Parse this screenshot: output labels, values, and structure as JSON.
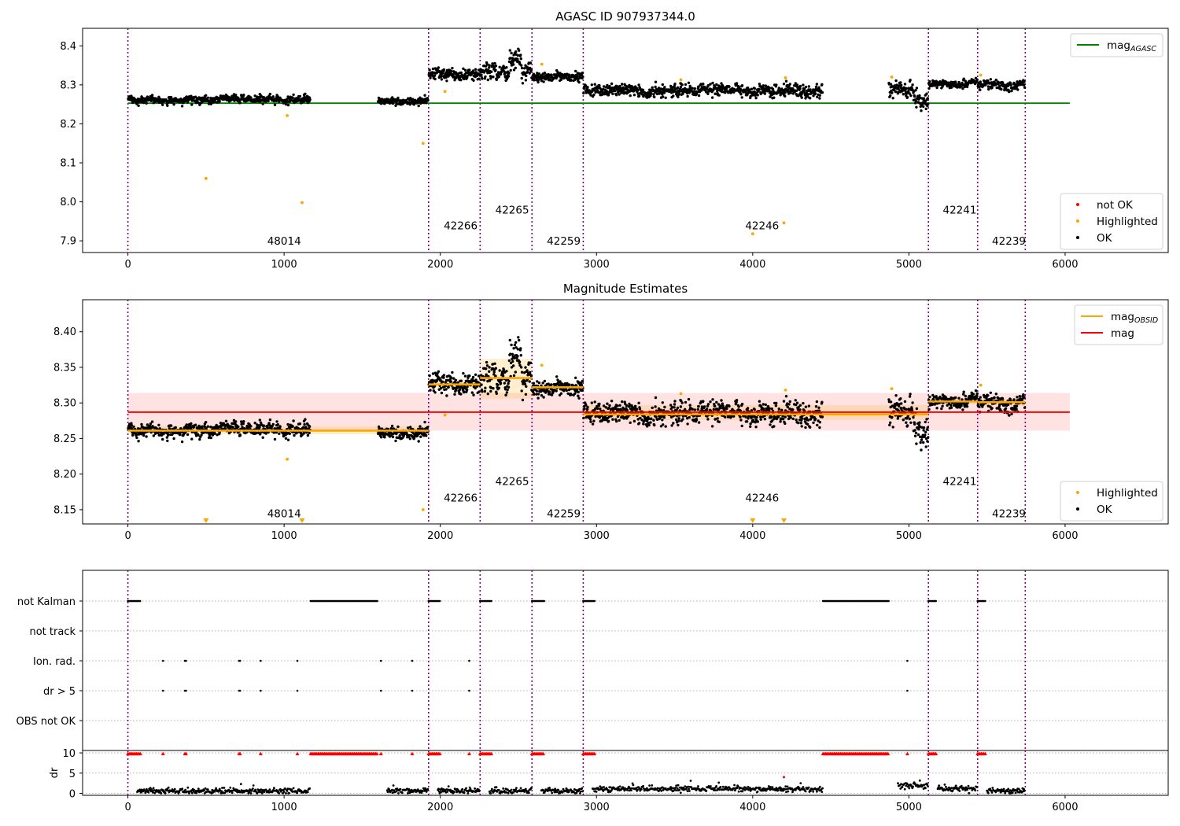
{
  "chart_data": [
    {
      "id": "top",
      "type": "scatter",
      "title": "AGASC ID 907937344.0",
      "xlim": [
        -290,
        6660
      ],
      "ylim": [
        7.87,
        8.445
      ],
      "xticks": [
        0,
        1000,
        2000,
        3000,
        4000,
        5000,
        6000
      ],
      "yticks": [
        7.9,
        8.0,
        8.1,
        8.2,
        8.3,
        8.4
      ],
      "obs_boundaries": [
        0,
        1925,
        2255,
        2587,
        2915,
        5125,
        5440,
        5745
      ],
      "obsid_labels": [
        {
          "text": "48014",
          "x": 960,
          "y": 7.9
        },
        {
          "text": "42266",
          "x": 2090,
          "y": 7.94
        },
        {
          "text": "42265",
          "x": 2420,
          "y": 7.98
        },
        {
          "text": "42259",
          "x": 2750,
          "y": 7.9
        },
        {
          "text": "42246",
          "x": 4020,
          "y": 7.94
        },
        {
          "text": "42241",
          "x": 5285,
          "y": 7.98
        },
        {
          "text": "42239",
          "x": 5600,
          "y": 7.9
        }
      ],
      "mag_agasc": {
        "value": 8.253,
        "x_range": [
          0,
          6030
        ],
        "color": "#008000"
      },
      "segments": [
        {
          "x0": 0,
          "x1": 1170,
          "mean": 8.262,
          "sd": 0.006
        },
        {
          "x0": 1600,
          "x1": 1925,
          "mean": 8.258,
          "sd": 0.006
        },
        {
          "x0": 1925,
          "x1": 2255,
          "mean": 8.325,
          "sd": 0.01
        },
        {
          "x0": 2255,
          "x1": 2587,
          "mean": 8.333,
          "sd": 0.016
        },
        {
          "x0": 2587,
          "x1": 2915,
          "mean": 8.323,
          "sd": 0.007
        },
        {
          "x0": 2915,
          "x1": 4450,
          "mean": 8.285,
          "sd": 0.009
        },
        {
          "x0": 4870,
          "x1": 5125,
          "mean": 8.283,
          "sd": 0.013
        },
        {
          "x0": 5125,
          "x1": 5440,
          "mean": 8.303,
          "sd": 0.006
        },
        {
          "x0": 5440,
          "x1": 5745,
          "mean": 8.302,
          "sd": 0.008
        }
      ],
      "highlighted_outliers": [
        {
          "x": 500,
          "y": 8.06
        },
        {
          "x": 1115,
          "y": 7.998
        },
        {
          "x": 1890,
          "y": 8.15
        },
        {
          "x": 2030,
          "y": 8.283
        },
        {
          "x": 4000,
          "y": 7.918
        },
        {
          "x": 4200,
          "y": 7.946
        },
        {
          "x": 1020,
          "y": 8.221
        },
        {
          "x": 2650,
          "y": 8.353
        },
        {
          "x": 3540,
          "y": 8.313
        },
        {
          "x": 4890,
          "y": 8.32
        },
        {
          "x": 4210,
          "y": 8.318
        },
        {
          "x": 5460,
          "y": 8.325
        }
      ],
      "legends": [
        {
          "position": "top-right",
          "entries": [
            {
              "label": "mag",
              "sub": "AGASC",
              "kind": "line",
              "color": "#008000"
            }
          ]
        },
        {
          "position": "bottom-right",
          "entries": [
            {
              "label": "not OK",
              "kind": "dot",
              "color": "#ff0000"
            },
            {
              "label": "Highlighted",
              "kind": "dot",
              "color": "#ffa500"
            },
            {
              "label": "OK",
              "kind": "dot",
              "color": "#000000"
            }
          ]
        }
      ]
    },
    {
      "id": "mid",
      "type": "scatter",
      "title": "Magnitude Estimates",
      "xlim": [
        -290,
        6660
      ],
      "ylim": [
        8.13,
        8.445
      ],
      "xticks": [
        0,
        1000,
        2000,
        3000,
        4000,
        5000,
        6000
      ],
      "yticks": [
        8.15,
        8.2,
        8.25,
        8.3,
        8.35,
        8.4
      ],
      "mag": {
        "value": 8.287,
        "band": [
          8.261,
          8.314
        ],
        "x_range": [
          0,
          6030
        ],
        "color": "#ff0000"
      },
      "mag_obsid": [
        {
          "x0": 0,
          "x1": 1925,
          "value": 8.261,
          "band": [
            8.256,
            8.267
          ]
        },
        {
          "x0": 1925,
          "x1": 2255,
          "value": 8.326,
          "band": [
            8.318,
            8.334
          ]
        },
        {
          "x0": 2255,
          "x1": 2587,
          "value": 8.335,
          "band": [
            8.306,
            8.362
          ]
        },
        {
          "x0": 2587,
          "x1": 2915,
          "value": 8.322,
          "band": [
            8.316,
            8.328
          ]
        },
        {
          "x0": 2915,
          "x1": 5125,
          "value": 8.284,
          "band": [
            8.276,
            8.297
          ]
        },
        {
          "x0": 5125,
          "x1": 5440,
          "value": 8.302,
          "band": [
            8.298,
            8.306
          ]
        },
        {
          "x0": 5440,
          "x1": 5745,
          "value": 8.301,
          "band": [
            8.296,
            8.306
          ]
        }
      ],
      "clipped_markers": [
        {
          "x": 500
        },
        {
          "x": 1115
        },
        {
          "x": 4000
        },
        {
          "x": 4200
        }
      ],
      "legends": [
        {
          "position": "top-right",
          "entries": [
            {
              "label": "mag",
              "sub": "OBSID",
              "kind": "line",
              "color": "#ffa500"
            },
            {
              "label": "mag",
              "kind": "line",
              "color": "#ff0000"
            }
          ]
        },
        {
          "position": "bottom-right",
          "entries": [
            {
              "label": "Highlighted",
              "kind": "dot",
              "color": "#ffa500"
            },
            {
              "label": "OK",
              "kind": "dot",
              "color": "#000000"
            }
          ]
        }
      ]
    },
    {
      "id": "flags",
      "type": "scatter",
      "categories": [
        "not Kalman",
        "not track",
        "Ion. rad.",
        "dr > 5",
        "OBS not OK"
      ],
      "xlim": [
        -290,
        6660
      ],
      "not_kalman_ranges": [
        [
          0,
          80
        ],
        [
          1170,
          1600
        ],
        [
          1925,
          2000
        ],
        [
          2255,
          2330
        ],
        [
          2587,
          2665
        ],
        [
          2915,
          2990
        ],
        [
          4450,
          4870
        ],
        [
          5125,
          5175
        ],
        [
          5440,
          5490
        ]
      ],
      "ion_rad_x": [
        225,
        365,
        372,
        712,
        718,
        850,
        1085,
        1620,
        1820,
        2185,
        4990
      ],
      "dr_gt5_x": [
        225,
        365,
        372,
        712,
        718,
        850,
        1085,
        1620,
        1820,
        2185,
        4990
      ]
    },
    {
      "id": "dr",
      "type": "scatter",
      "ylabel": "dr",
      "xlim": [
        -290,
        6660
      ],
      "ylim": [
        -0.5,
        10.6
      ],
      "yticks": [
        0,
        5,
        10
      ],
      "xticks": [
        0,
        1000,
        2000,
        3000,
        4000,
        5000,
        6000
      ],
      "clipped_x_ranges": [
        [
          0,
          80
        ],
        [
          1170,
          1600
        ],
        [
          1925,
          2000
        ],
        [
          2255,
          2330
        ],
        [
          2587,
          2665
        ],
        [
          2915,
          2990
        ],
        [
          4450,
          4870
        ],
        [
          5125,
          5175
        ],
        [
          5440,
          5490
        ]
      ],
      "clipped_x_points": [
        225,
        365,
        372,
        712,
        718,
        850,
        1085,
        1620,
        1820,
        2185,
        4990
      ],
      "red_point": {
        "x": 4200,
        "y": 4.0
      }
    }
  ]
}
